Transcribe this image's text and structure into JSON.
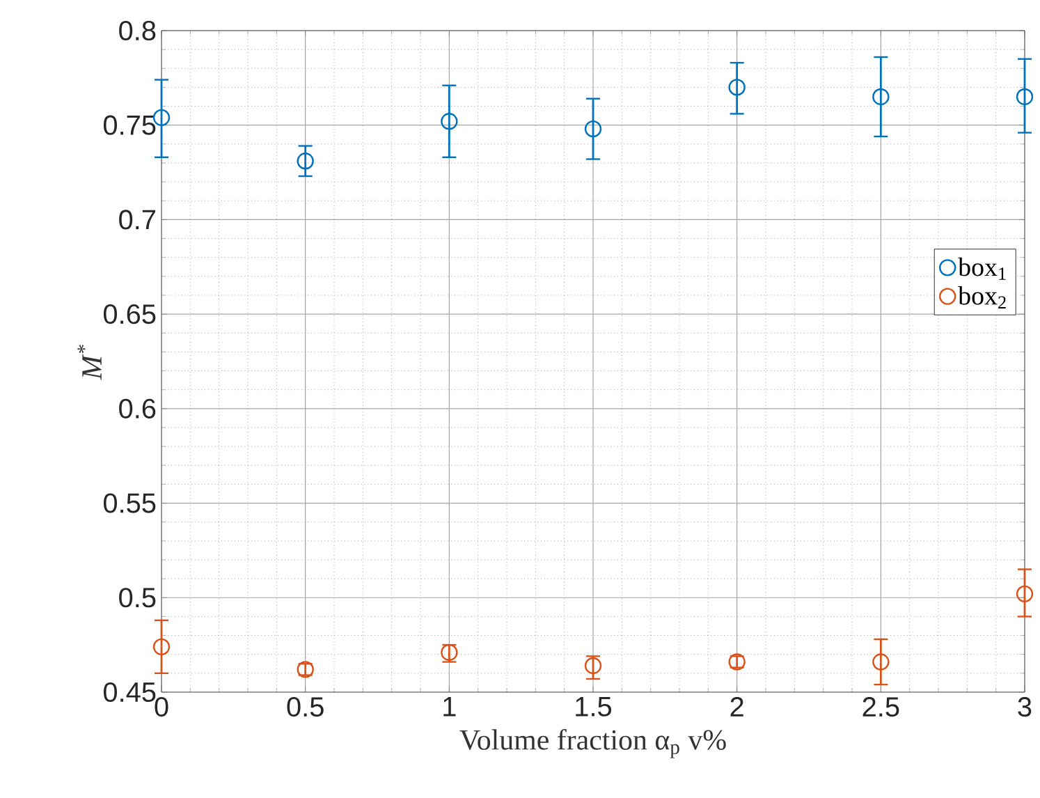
{
  "chart_data": {
    "type": "scatter",
    "xlabel": "Volume fraction α$_{p}$ v%",
    "ylabel": "*M*$^{*}$",
    "x": [
      0,
      0.5,
      1,
      1.5,
      2,
      2.5,
      3
    ],
    "series": [
      {
        "name": "box$_{1}$",
        "color": "#0072bd",
        "values": [
          0.754,
          0.731,
          0.752,
          0.748,
          0.77,
          0.765,
          0.765
        ],
        "errors": [
          [
            0.733,
            0.774
          ],
          [
            0.723,
            0.739
          ],
          [
            0.733,
            0.771
          ],
          [
            0.732,
            0.764
          ],
          [
            0.756,
            0.783
          ],
          [
            0.744,
            0.786
          ],
          [
            0.746,
            0.785
          ]
        ]
      },
      {
        "name": "box$_{2}$",
        "color": "#d95319",
        "values": [
          0.474,
          0.462,
          0.471,
          0.464,
          0.466,
          0.466,
          0.502
        ],
        "errors": [
          [
            0.46,
            0.488
          ],
          [
            0.459,
            0.465
          ],
          [
            0.466,
            0.475
          ],
          [
            0.457,
            0.469
          ],
          [
            0.463,
            0.469
          ],
          [
            0.454,
            0.478
          ],
          [
            0.49,
            0.515
          ]
        ]
      }
    ],
    "xlim": [
      0,
      3
    ],
    "ylim": [
      0.45,
      0.8
    ],
    "xticks": [
      0,
      0.5,
      1,
      1.5,
      2,
      2.5,
      3
    ],
    "yticks": [
      0.45,
      0.5,
      0.55,
      0.6,
      0.65,
      0.7,
      0.75,
      0.8
    ],
    "grid": true,
    "legend": "right",
    "marker": "circle"
  }
}
